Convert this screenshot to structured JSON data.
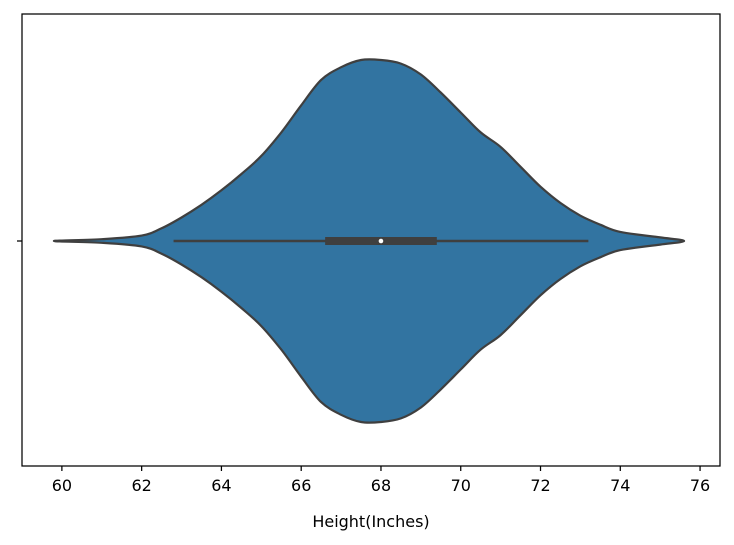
{
  "chart_data": {
    "type": "violin",
    "orientation": "horizontal",
    "title": "",
    "xlabel": "Height(Inches)",
    "ylabel": "",
    "xlim": [
      59,
      76.5
    ],
    "xticks": [
      60,
      62,
      64,
      66,
      68,
      70,
      72,
      74,
      76
    ],
    "grid": false,
    "colors": {
      "fill": "#3274a1",
      "edge": "#3f3f3f",
      "box": "#3f3f3f",
      "median": "#ffffff",
      "axis": "#000000"
    },
    "density": {
      "x": [
        59.8,
        61.0,
        62.0,
        62.5,
        63.0,
        63.5,
        64.0,
        64.5,
        65.0,
        65.5,
        66.0,
        66.5,
        67.0,
        67.5,
        68.0,
        68.5,
        69.0,
        69.5,
        70.0,
        70.5,
        71.0,
        71.5,
        72.0,
        72.5,
        73.0,
        73.5,
        74.0,
        75.0,
        75.6
      ],
      "width": [
        0.0,
        0.01,
        0.03,
        0.07,
        0.13,
        0.2,
        0.28,
        0.37,
        0.47,
        0.6,
        0.75,
        0.89,
        0.96,
        1.0,
        1.0,
        0.98,
        0.92,
        0.82,
        0.71,
        0.6,
        0.52,
        0.41,
        0.3,
        0.21,
        0.14,
        0.09,
        0.05,
        0.02,
        0.0
      ]
    },
    "box": {
      "whisker_low": 62.8,
      "q1": 66.6,
      "median": 68.0,
      "q3": 69.4,
      "whisker_high": 73.2
    }
  }
}
